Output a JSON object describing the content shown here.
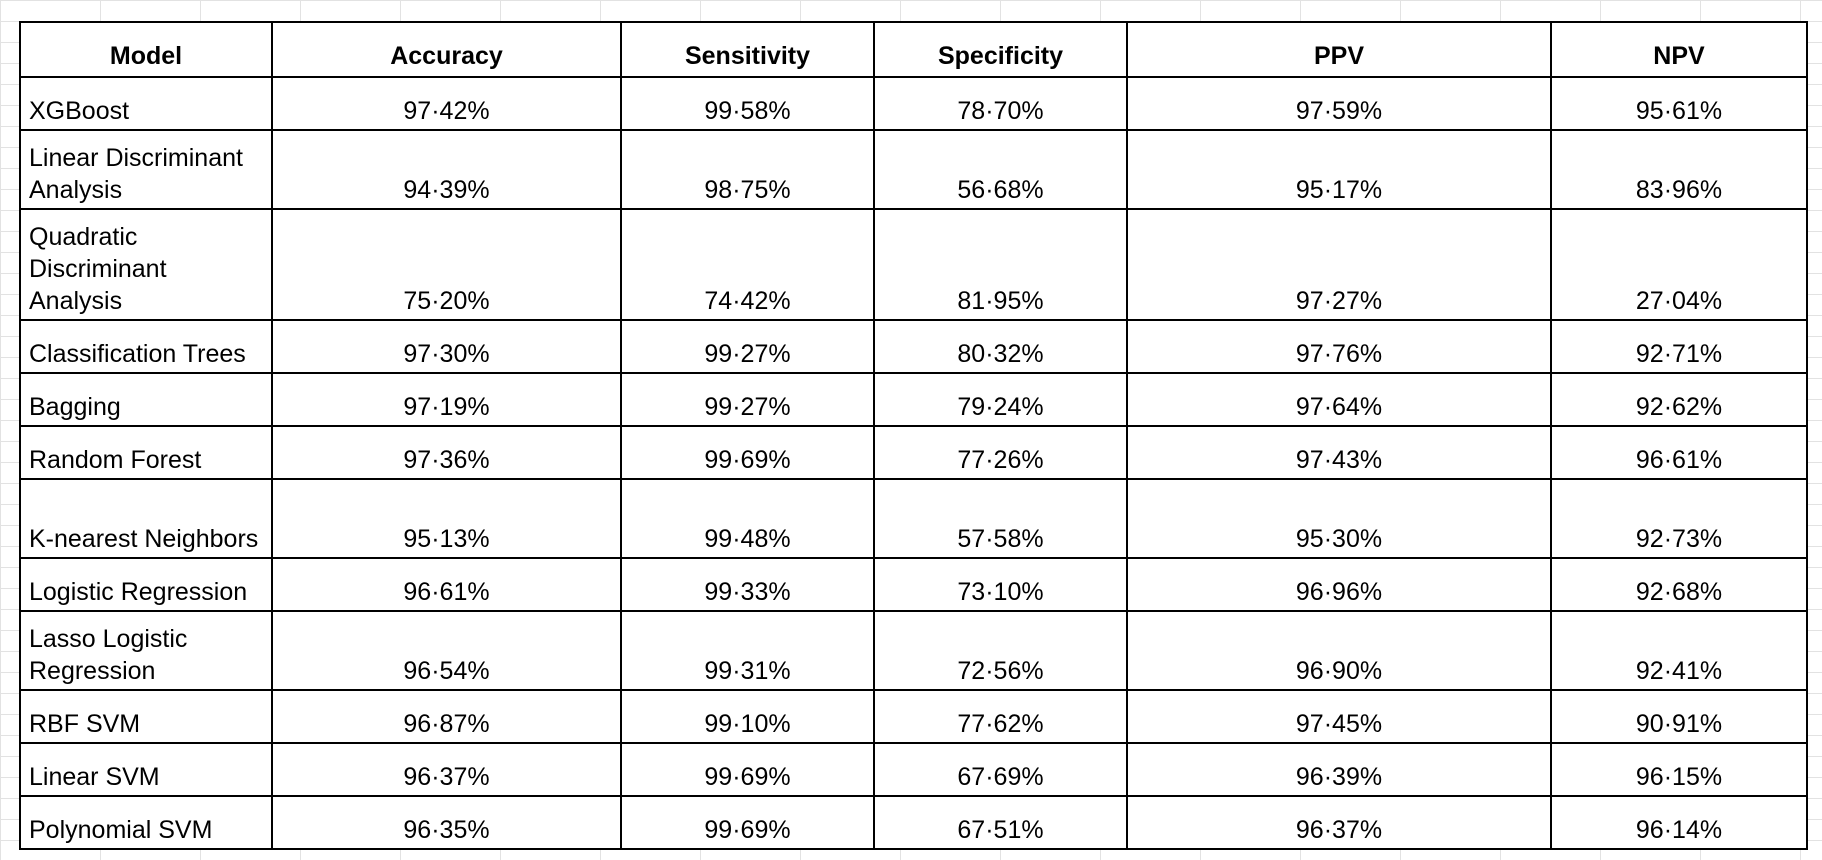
{
  "table": {
    "columns": [
      "Model",
      "Accuracy",
      "Sensitivity",
      "Specificity",
      "PPV",
      "NPV"
    ],
    "rows": [
      {
        "model": "XGBoost",
        "accuracy": "97·42%",
        "sensitivity": "99·58%",
        "specificity": "78·70%",
        "ppv": "97·59%",
        "npv": "95·61%"
      },
      {
        "model": "Linear Discriminant Analysis",
        "accuracy": "94·39%",
        "sensitivity": "98·75%",
        "specificity": "56·68%",
        "ppv": "95·17%",
        "npv": "83·96%"
      },
      {
        "model": "Quadratic Discriminant Analysis",
        "accuracy": "75·20%",
        "sensitivity": "74·42%",
        "specificity": "81·95%",
        "ppv": "97·27%",
        "npv": "27·04%"
      },
      {
        "model": "Classification Trees",
        "accuracy": "97·30%",
        "sensitivity": "99·27%",
        "specificity": "80·32%",
        "ppv": "97·76%",
        "npv": "92·71%"
      },
      {
        "model": "Bagging",
        "accuracy": "97·19%",
        "sensitivity": "99·27%",
        "specificity": "79·24%",
        "ppv": "97·64%",
        "npv": "92·62%"
      },
      {
        "model": "Random Forest",
        "accuracy": "97·36%",
        "sensitivity": "99·69%",
        "specificity": "77·26%",
        "ppv": "97·43%",
        "npv": "96·61%"
      },
      {
        "model": "K-nearest Neighbors",
        "accuracy": "95·13%",
        "sensitivity": "99·48%",
        "specificity": "57·58%",
        "ppv": "95·30%",
        "npv": "92·73%"
      },
      {
        "model": "Logistic Regression",
        "accuracy": "96·61%",
        "sensitivity": "99·33%",
        "specificity": "73·10%",
        "ppv": "96·96%",
        "npv": "92·68%"
      },
      {
        "model": "Lasso Logistic Regression",
        "accuracy": "96·54%",
        "sensitivity": "99·31%",
        "specificity": "72·56%",
        "ppv": "96·90%",
        "npv": "92·41%"
      },
      {
        "model": "RBF SVM",
        "accuracy": "96·87%",
        "sensitivity": "99·10%",
        "specificity": "77·62%",
        "ppv": "97·45%",
        "npv": "90·91%"
      },
      {
        "model": "Linear SVM",
        "accuracy": "96·37%",
        "sensitivity": "99·69%",
        "specificity": "67·69%",
        "ppv": "96·39%",
        "npv": "96·15%"
      },
      {
        "model": "Polynomial SVM",
        "accuracy": "96·35%",
        "sensitivity": "99·69%",
        "specificity": "67·51%",
        "ppv": "96·37%",
        "npv": "96·14%"
      }
    ]
  }
}
